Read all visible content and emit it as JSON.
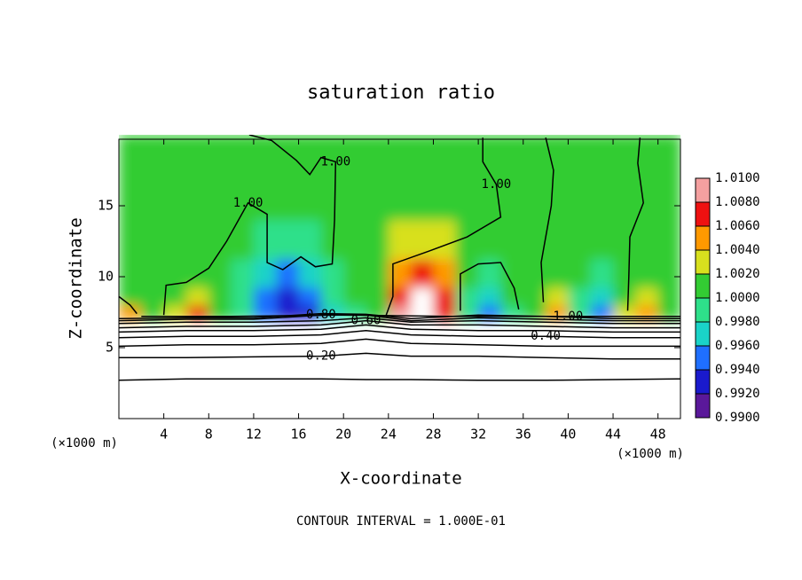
{
  "chart_data": {
    "type": "contour",
    "title": "saturation ratio",
    "x_label": "X-coordinate",
    "y_label": "Z-coordinate",
    "x_unit": "(×1000 m)",
    "footer": "CONTOUR INTERVAL = 1.000E-01",
    "xlim": [
      0,
      50
    ],
    "ylim": [
      0,
      20
    ],
    "xticks": [
      4,
      8,
      12,
      16,
      20,
      24,
      28,
      32,
      36,
      40,
      44,
      48
    ],
    "yticks": [
      5,
      10,
      15
    ],
    "field": {
      "x": [
        1,
        3,
        5,
        7,
        9,
        11,
        13,
        15,
        17,
        19,
        21,
        23,
        25,
        27,
        29,
        31,
        33,
        35,
        37,
        39,
        41,
        43,
        45,
        47,
        49
      ],
      "z": [
        7.5,
        8.5,
        10,
        12.5,
        15.5,
        18.5
      ],
      "values": [
        [
          1.004,
          1.001,
          1.003,
          1.006,
          1.001,
          0.998,
          0.994,
          0.992,
          0.993,
          0.997,
          0.999,
          1.0,
          1.008,
          1.011,
          1.007,
          0.999,
          0.995,
          0.999,
          1.001,
          1.004,
          0.998,
          0.995,
          1.002,
          1.005,
          1.001
        ],
        [
          1.001,
          1.0,
          1.001,
          1.002,
          1.001,
          0.998,
          0.995,
          0.993,
          0.994,
          0.998,
          1.0,
          1.0,
          1.007,
          1.011,
          1.006,
          0.999,
          0.997,
          1.0,
          1.0,
          1.002,
          0.999,
          0.997,
          1.001,
          1.003,
          1.001
        ],
        [
          1.0,
          1.001,
          1.001,
          1.001,
          1.001,
          0.999,
          0.997,
          0.995,
          0.996,
          0.999,
          1.001,
          1.001,
          1.004,
          1.007,
          1.004,
          1.0,
          0.999,
          1.0,
          1.001,
          1.001,
          1.0,
          0.999,
          1.001,
          1.001,
          1.001
        ],
        [
          1.001,
          1.001,
          1.001,
          1.001,
          1.001,
          1.0,
          0.999,
          0.998,
          0.999,
          1.001,
          1.001,
          1.001,
          1.002,
          1.003,
          1.002,
          1.001,
          1.001,
          1.001,
          1.001,
          1.001,
          1.001,
          1.001,
          1.001,
          1.001,
          1.001
        ],
        [
          1.001,
          1.001,
          1.001,
          1.001,
          1.001,
          1.001,
          1.001,
          1.0,
          1.001,
          1.001,
          1.001,
          1.001,
          1.0,
          1.001,
          1.001,
          1.001,
          1.001,
          1.0,
          1.001,
          1.001,
          1.0,
          1.001,
          1.001,
          1.001,
          1.001
        ],
        [
          1.001,
          1.001,
          1.001,
          1.001,
          1.001,
          1.001,
          1.001,
          1.001,
          1.001,
          1.001,
          1.001,
          1.001,
          1.001,
          1.001,
          1.001,
          1.001,
          1.001,
          1.001,
          1.001,
          1.001,
          1.001,
          1.001,
          1.001,
          1.001,
          1.001
        ]
      ]
    },
    "colorbar": {
      "ticks": [
        {
          "value": 1.01,
          "label": "1.0100"
        },
        {
          "value": 1.008,
          "label": "1.0080"
        },
        {
          "value": 1.006,
          "label": "1.0060"
        },
        {
          "value": 1.004,
          "label": "1.0040"
        },
        {
          "value": 1.002,
          "label": "1.0020"
        },
        {
          "value": 1.0,
          "label": "1.0000"
        },
        {
          "value": 0.998,
          "label": "0.9980"
        },
        {
          "value": 0.996,
          "label": "0.9960"
        },
        {
          "value": 0.994,
          "label": "0.9940"
        },
        {
          "value": 0.992,
          "label": "0.9920"
        },
        {
          "value": 0.99,
          "label": "0.9900"
        }
      ],
      "colors": [
        "#5a189a",
        "#1a1acd",
        "#1f6fff",
        "#1ad3c8",
        "#2ee08a",
        "#33cc33",
        "#d8e01e",
        "#ff9900",
        "#ee1111",
        "#f4a0a0"
      ]
    },
    "contours": [
      {
        "level": 0.1,
        "x": [
          0,
          6,
          12,
          18,
          22,
          26,
          32,
          38,
          44,
          50
        ],
        "z": [
          2.7,
          2.8,
          2.8,
          2.8,
          2.75,
          2.75,
          2.7,
          2.7,
          2.75,
          2.8
        ]
      },
      {
        "level": 0.2,
        "label": "0.20",
        "x": [
          0,
          6,
          12,
          18,
          22,
          26,
          32,
          38,
          44,
          50
        ],
        "z": [
          4.3,
          4.3,
          4.35,
          4.4,
          4.6,
          4.4,
          4.4,
          4.3,
          4.2,
          4.2
        ]
      },
      {
        "level": 0.3,
        "x": [
          0,
          6,
          12,
          18,
          22,
          26,
          32,
          38,
          44,
          50
        ],
        "z": [
          5.1,
          5.2,
          5.2,
          5.3,
          5.6,
          5.3,
          5.2,
          5.1,
          5.1,
          5.1
        ]
      },
      {
        "level": 0.4,
        "label": "0.40",
        "x": [
          0,
          6,
          12,
          18,
          22,
          26,
          32,
          38,
          44,
          50
        ],
        "z": [
          5.7,
          5.8,
          5.8,
          5.9,
          6.2,
          5.9,
          5.8,
          5.8,
          5.7,
          5.7
        ]
      },
      {
        "level": 0.5,
        "x": [
          0,
          6,
          12,
          18,
          22,
          26,
          32,
          38,
          44,
          50
        ],
        "z": [
          6.1,
          6.2,
          6.2,
          6.3,
          6.6,
          6.3,
          6.2,
          6.2,
          6.1,
          6.1
        ]
      },
      {
        "level": 0.6,
        "label": "0.60",
        "x": [
          0,
          6,
          12,
          18,
          22,
          26,
          32,
          38,
          44,
          50
        ],
        "z": [
          6.4,
          6.5,
          6.5,
          6.6,
          6.9,
          6.6,
          6.6,
          6.5,
          6.4,
          6.4
        ]
      },
      {
        "level": 0.7,
        "x": [
          0,
          6,
          12,
          18,
          22,
          26,
          32,
          38,
          44,
          50
        ],
        "z": [
          6.7,
          6.8,
          6.8,
          6.9,
          7.1,
          6.8,
          6.9,
          6.8,
          6.7,
          6.7
        ]
      },
      {
        "level": 0.8,
        "label": "0.80",
        "x": [
          0,
          6,
          12,
          18,
          22,
          26,
          32,
          38,
          44,
          50
        ],
        "z": [
          6.9,
          7.0,
          7.0,
          7.3,
          7.3,
          6.9,
          7.1,
          7.0,
          6.9,
          6.9
        ]
      },
      {
        "level": 0.9,
        "x": [
          0,
          6,
          12,
          18,
          22,
          26,
          32,
          38,
          44,
          50
        ],
        "z": [
          7.05,
          7.1,
          7.1,
          7.4,
          7.35,
          7.05,
          7.3,
          7.2,
          7.05,
          7.05
        ]
      },
      {
        "level": 1.0,
        "label": "1.00",
        "x": [
          0,
          1,
          1.6,
          null,
          4,
          4.2,
          6,
          8,
          9.6,
          11.5,
          13.2,
          13.2,
          14.6,
          16.2,
          17.5,
          19,
          19.2,
          19.3,
          18,
          17,
          15.8,
          13.6,
          11.6,
          null,
          23.8,
          24.4,
          24.4,
          27.6,
          31,
          34,
          33.6,
          32.4,
          32.4,
          null,
          30.4,
          30.4,
          32,
          34,
          35.2,
          35.6,
          null,
          37.8,
          37.6,
          38.5,
          38.7,
          38,
          null,
          45.3,
          45.4,
          45.5,
          46.7,
          46.2,
          46.4,
          null,
          2,
          10,
          20,
          30,
          40,
          50
        ],
        "z": [
          8.6,
          8.0,
          7.4,
          null,
          7.3,
          9.4,
          9.6,
          10.6,
          12.5,
          15.2,
          14.4,
          11,
          10.5,
          11.4,
          10.7,
          10.9,
          14,
          18.1,
          18.4,
          17.2,
          18.2,
          19.6,
          20,
          null,
          7.3,
          8.6,
          10.9,
          11.8,
          12.8,
          14.2,
          16.5,
          18.1,
          19.8,
          null,
          7.6,
          10.2,
          10.9,
          11,
          9.2,
          7.7,
          null,
          8.2,
          11,
          15,
          17.5,
          19.8,
          null,
          7.6,
          10,
          12.8,
          15.2,
          18,
          19.8,
          null,
          7.2,
          7.2,
          7.3,
          7.2,
          7.2,
          7.2
        ]
      }
    ]
  }
}
